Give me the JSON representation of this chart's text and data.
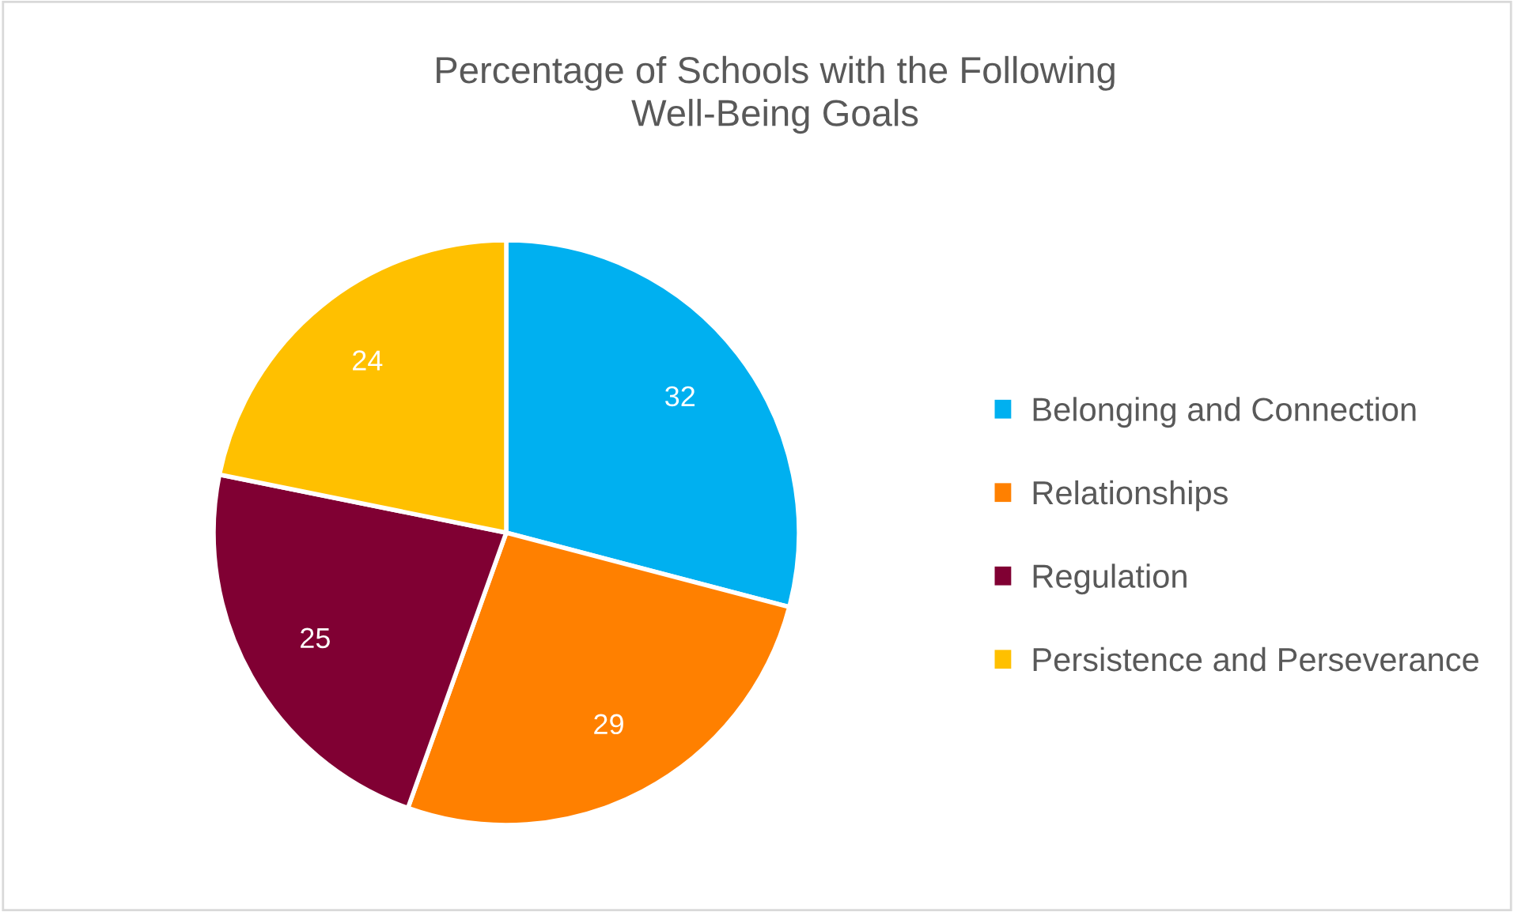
{
  "chart_data": {
    "type": "pie",
    "title": "Percentage of Schools with the Following\nWell-Being Goals",
    "categories": [
      "Belonging and Connection",
      "Relationships",
      "Regulation",
      "Persistence and Perseverance"
    ],
    "values": [
      32,
      29,
      25,
      24
    ],
    "colors": [
      "#00b0f0",
      "#ff8000",
      "#800033",
      "#ffc000"
    ],
    "data_labels": true,
    "legend": "right"
  }
}
